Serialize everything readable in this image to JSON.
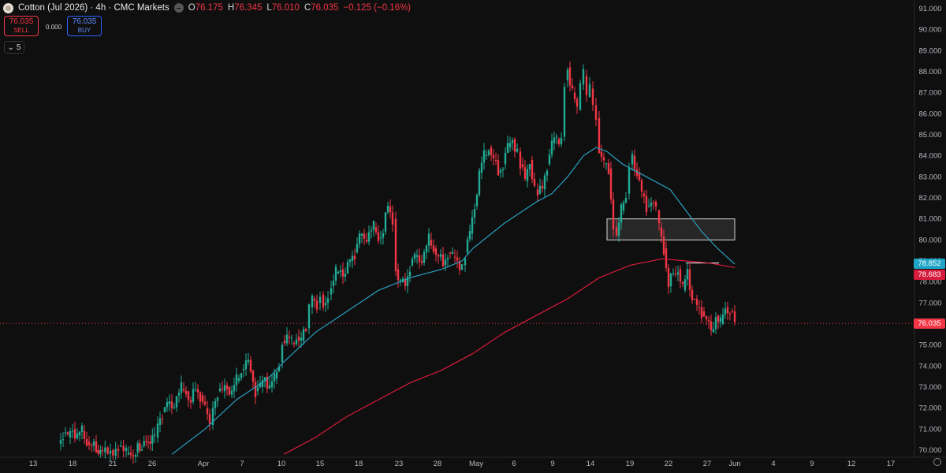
{
  "header": {
    "symbol": "Cotton (Jul 2026) · 4h · CMC Markets",
    "logo": "cotton-logo-icon",
    "open_label": "O",
    "open": "76.175",
    "high_label": "H",
    "high": "76.345",
    "low_label": "L",
    "low": "76.010",
    "close_label": "C",
    "close": "76.035",
    "change": "−0.125 (−0.16%)"
  },
  "trade": {
    "sell_price": "76.035",
    "sell_label": "SELL",
    "spread": "0.000",
    "buy_price": "76.035",
    "buy_label": "BUY"
  },
  "indicators_toggle": {
    "icon": "chevron-down-icon",
    "count": "5"
  },
  "price_tags": {
    "ema_fast": "78.852",
    "ema_slow": "78.683",
    "last": "76.035"
  },
  "colors": {
    "up": "#22ab94",
    "down": "#f23645",
    "ema_fast": "#2a9fc0",
    "ema_slow": "#d81b3c",
    "last_price": "#f23645",
    "fast_tag": "#1fa5c7"
  },
  "chart_data": {
    "type": "candlestick",
    "timeframe": "4h",
    "ylim": [
      69.8,
      91.3
    ],
    "yticks": [
      "91.000",
      "90.000",
      "89.000",
      "88.000",
      "87.000",
      "86.000",
      "85.000",
      "84.000",
      "83.000",
      "82.000",
      "81.000",
      "80.000",
      "79.000",
      "78.000",
      "77.000",
      "76.000",
      "75.000",
      "74.000",
      "73.000",
      "72.000",
      "71.000",
      "70.000"
    ],
    "xticks": [
      "13",
      "18",
      "21",
      "26",
      "Apr",
      "7",
      "10",
      "15",
      "18",
      "23",
      "28",
      "May",
      "6",
      "9",
      "14",
      "19",
      "22",
      "27",
      "Jun",
      "4",
      "9",
      "12",
      "17"
    ],
    "close_path": [
      [
        74,
        70.3
      ],
      [
        80,
        70.8
      ],
      [
        86,
        70.6
      ],
      [
        92,
        71.0
      ],
      [
        98,
        70.7
      ],
      [
        104,
        70.9
      ],
      [
        110,
        70.4
      ],
      [
        116,
        70.2
      ],
      [
        122,
        70.0
      ],
      [
        130,
        69.9
      ],
      [
        140,
        70.0
      ],
      [
        150,
        70.2
      ],
      [
        160,
        69.8
      ],
      [
        172,
        69.9
      ],
      [
        180,
        70.2
      ],
      [
        188,
        70.4
      ],
      [
        196,
        70.6
      ],
      [
        200,
        71.2
      ],
      [
        206,
        71.8
      ],
      [
        212,
        72.2
      ],
      [
        218,
        72.0
      ],
      [
        224,
        72.6
      ],
      [
        230,
        72.9
      ],
      [
        236,
        72.8
      ],
      [
        242,
        72.3
      ],
      [
        248,
        72.9
      ],
      [
        254,
        72.6
      ],
      [
        260,
        72.0
      ],
      [
        266,
        71.2
      ],
      [
        270,
        72.0
      ],
      [
        276,
        72.8
      ],
      [
        282,
        72.8
      ],
      [
        288,
        73.0
      ],
      [
        294,
        72.8
      ],
      [
        300,
        73.3
      ],
      [
        306,
        73.8
      ],
      [
        312,
        74.2
      ],
      [
        318,
        73.8
      ],
      [
        324,
        72.8
      ],
      [
        330,
        73.0
      ],
      [
        336,
        73.5
      ],
      [
        342,
        73.0
      ],
      [
        348,
        73.4
      ],
      [
        354,
        74.2
      ],
      [
        358,
        75.2
      ],
      [
        364,
        75.4
      ],
      [
        370,
        75.1
      ],
      [
        376,
        75.4
      ],
      [
        382,
        75.2
      ],
      [
        388,
        75.8
      ],
      [
        392,
        76.8
      ],
      [
        396,
        77.2
      ],
      [
        402,
        77.0
      ],
      [
        406,
        77.4
      ],
      [
        410,
        76.9
      ],
      [
        416,
        77.4
      ],
      [
        420,
        77.8
      ],
      [
        426,
        78.4
      ],
      [
        432,
        78.6
      ],
      [
        438,
        78.4
      ],
      [
        444,
        79.0
      ],
      [
        450,
        79.4
      ],
      [
        456,
        80.2
      ],
      [
        462,
        80.0
      ],
      [
        468,
        80.4
      ],
      [
        474,
        80.6
      ],
      [
        480,
        80.1
      ],
      [
        486,
        80.4
      ],
      [
        492,
        81.6
      ],
      [
        498,
        81.0
      ],
      [
        502,
        78.6
      ],
      [
        508,
        78.0
      ],
      [
        514,
        77.8
      ],
      [
        520,
        78.8
      ],
      [
        526,
        79.2
      ],
      [
        532,
        79.0
      ],
      [
        538,
        79.4
      ],
      [
        544,
        80.0
      ],
      [
        550,
        79.6
      ],
      [
        556,
        79.2
      ],
      [
        562,
        78.8
      ],
      [
        568,
        79.4
      ],
      [
        574,
        79.2
      ],
      [
        580,
        79.0
      ],
      [
        586,
        78.8
      ],
      [
        590,
        79.4
      ],
      [
        596,
        80.3
      ],
      [
        602,
        81.6
      ],
      [
        608,
        83.2
      ],
      [
        614,
        84.0
      ],
      [
        620,
        84.4
      ],
      [
        626,
        83.8
      ],
      [
        632,
        83.2
      ],
      [
        638,
        83.6
      ],
      [
        644,
        84.4
      ],
      [
        650,
        84.8
      ],
      [
        656,
        84.2
      ],
      [
        660,
        83.6
      ],
      [
        666,
        82.8
      ],
      [
        672,
        83.8
      ],
      [
        678,
        82.4
      ],
      [
        682,
        82.2
      ],
      [
        688,
        82.4
      ],
      [
        694,
        83.6
      ],
      [
        700,
        84.6
      ],
      [
        706,
        84.8
      ],
      [
        712,
        84.9
      ],
      [
        716,
        87.6
      ],
      [
        720,
        88.2
      ],
      [
        726,
        87.0
      ],
      [
        732,
        86.2
      ],
      [
        736,
        87.4
      ],
      [
        740,
        87.8
      ],
      [
        744,
        86.8
      ],
      [
        748,
        87.2
      ],
      [
        752,
        86.4
      ],
      [
        756,
        85.8
      ],
      [
        760,
        84.2
      ],
      [
        766,
        83.6
      ],
      [
        772,
        83.4
      ],
      [
        778,
        80.6
      ],
      [
        782,
        80.2
      ],
      [
        788,
        81.4
      ],
      [
        794,
        82.2
      ],
      [
        798,
        83.6
      ],
      [
        802,
        84.0
      ],
      [
        808,
        83.2
      ],
      [
        814,
        82.2
      ],
      [
        820,
        81.6
      ],
      [
        826,
        81.8
      ],
      [
        832,
        81.4
      ],
      [
        836,
        80.6
      ],
      [
        842,
        79.6
      ],
      [
        848,
        77.8
      ],
      [
        854,
        78.4
      ],
      [
        860,
        78.6
      ],
      [
        866,
        77.6
      ],
      [
        872,
        78.6
      ],
      [
        878,
        77.2
      ],
      [
        884,
        76.8
      ],
      [
        890,
        76.6
      ],
      [
        896,
        76.2
      ],
      [
        902,
        75.6
      ],
      [
        908,
        76.4
      ],
      [
        914,
        76.0
      ],
      [
        920,
        76.8
      ],
      [
        926,
        76.6
      ],
      [
        932,
        76.035
      ]
    ],
    "series": [
      {
        "name": "",
        "kind": "ema_fast",
        "values": [
          [
            218,
            69.8
          ],
          [
            260,
            71.0
          ],
          [
            300,
            72.4
          ],
          [
            340,
            73.4
          ],
          [
            360,
            74.2
          ],
          [
            400,
            75.6
          ],
          [
            440,
            76.6
          ],
          [
            480,
            77.6
          ],
          [
            520,
            78.2
          ],
          [
            560,
            78.6
          ],
          [
            586,
            79.0
          ],
          [
            600,
            79.6
          ],
          [
            640,
            80.8
          ],
          [
            680,
            81.8
          ],
          [
            700,
            82.2
          ],
          [
            720,
            83.0
          ],
          [
            740,
            84.0
          ],
          [
            756,
            84.4
          ],
          [
            770,
            84.2
          ],
          [
            790,
            83.6
          ],
          [
            820,
            83.0
          ],
          [
            850,
            82.4
          ],
          [
            870,
            81.4
          ],
          [
            890,
            80.4
          ],
          [
            910,
            79.6
          ],
          [
            932,
            78.852
          ]
        ]
      },
      {
        "name": "",
        "kind": "ema_slow",
        "values": [
          [
            360,
            69.8
          ],
          [
            400,
            70.6
          ],
          [
            440,
            71.6
          ],
          [
            480,
            72.4
          ],
          [
            520,
            73.2
          ],
          [
            560,
            73.8
          ],
          [
            600,
            74.6
          ],
          [
            640,
            75.6
          ],
          [
            680,
            76.4
          ],
          [
            720,
            77.2
          ],
          [
            760,
            78.2
          ],
          [
            800,
            78.8
          ],
          [
            840,
            79.1
          ],
          [
            870,
            79.0
          ],
          [
            900,
            78.9
          ],
          [
            932,
            78.683
          ]
        ]
      }
    ],
    "annotations": {
      "zone": {
        "y_top": 81.0,
        "y_bottom": 80.0
      },
      "level_line": 78.9,
      "last_price": 76.035
    }
  }
}
